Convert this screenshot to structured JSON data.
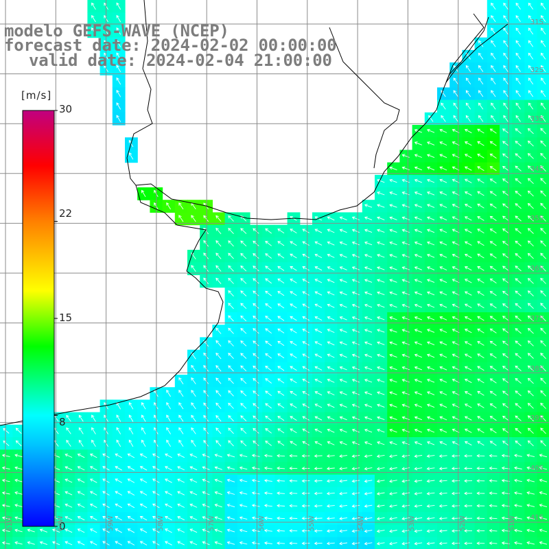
{
  "title": {
    "line1": "modelo GEFS-WAVE (NCEP)",
    "line2": "forecast date: 2024-02-02 00:00:00",
    "line3": "valid date: 2024-02-04 21:00:00"
  },
  "colorbar": {
    "units": "[m/s]",
    "ticks": [
      "30",
      "22",
      "15",
      "8",
      "0"
    ],
    "tick_values": [
      30,
      22,
      15,
      8,
      0
    ],
    "range": [
      0,
      30
    ],
    "stops": [
      "#0000ff",
      "#00c8ff",
      "#00ffff",
      "#00ff00",
      "#ffff00",
      "#ff8000",
      "#ff0000",
      "#c00080"
    ]
  },
  "latitude_labels": [
    "31S",
    "32S",
    "33S",
    "34S",
    "35S",
    "36S",
    "37S",
    "38S",
    "39S",
    "40S",
    "41S"
  ],
  "longitude_labels": [
    "61W",
    "60W",
    "59W",
    "58W",
    "57W",
    "56W",
    "55W",
    "54W",
    "53W",
    "52W",
    "51W"
  ],
  "map": {
    "field": "wind speed",
    "region": "Rio de la Plata / Uruguay coast",
    "dominant_direction": "southeast to northwest",
    "grid_color": "#8a8a8a",
    "coastline_color": "#000000",
    "arrow_color": "#ffffff"
  }
}
